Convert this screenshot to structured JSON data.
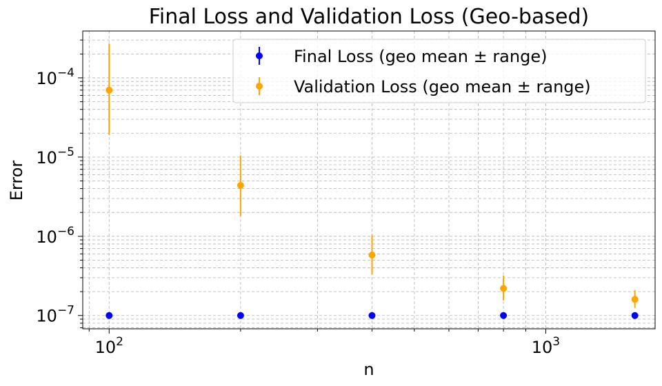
{
  "chart_data": {
    "type": "scatter",
    "title": "Final Loss and Validation Loss (Geo-based)",
    "xlabel": "n",
    "ylabel": "Error",
    "xscale": "log",
    "yscale": "log",
    "xlim": [
      87,
      1780
    ],
    "ylim": [
      6.8e-08,
      0.00039
    ],
    "grid": true,
    "legend_position": "upper right",
    "x": [
      100,
      200,
      400,
      800,
      1600
    ],
    "series": [
      {
        "name": "Final Loss (geo mean ± range)",
        "color": "#0000ff",
        "values": [
          1e-07,
          1e-07,
          1e-07,
          1e-07,
          1e-07
        ],
        "lower": [
          1e-07,
          1e-07,
          1e-07,
          1e-07,
          1e-07
        ],
        "upper": [
          1e-07,
          1e-07,
          1e-07,
          1e-07,
          1e-07
        ]
      },
      {
        "name": "Validation Loss (geo mean ± range)",
        "color": "#ffa500",
        "values": [
          7e-05,
          4.4e-06,
          5.8e-07,
          2.2e-07,
          1.6e-07
        ],
        "lower": [
          1.9e-05,
          1.8e-06,
          3.3e-07,
          1.55e-07,
          1.25e-07
        ],
        "upper": [
          0.00027,
          1.05e-05,
          1.05e-06,
          3.2e-07,
          2.1e-07
        ]
      }
    ],
    "xticks": [
      {
        "value": 100,
        "base": "10",
        "exp": "2"
      },
      {
        "value": 1000,
        "base": "10",
        "exp": "3"
      }
    ],
    "yticks": [
      {
        "value": 1e-07,
        "base": "10",
        "exp": "−7"
      },
      {
        "value": 1e-06,
        "base": "10",
        "exp": "−6"
      },
      {
        "value": 1e-05,
        "base": "10",
        "exp": "−5"
      },
      {
        "value": 0.0001,
        "base": "10",
        "exp": "−4"
      }
    ]
  }
}
